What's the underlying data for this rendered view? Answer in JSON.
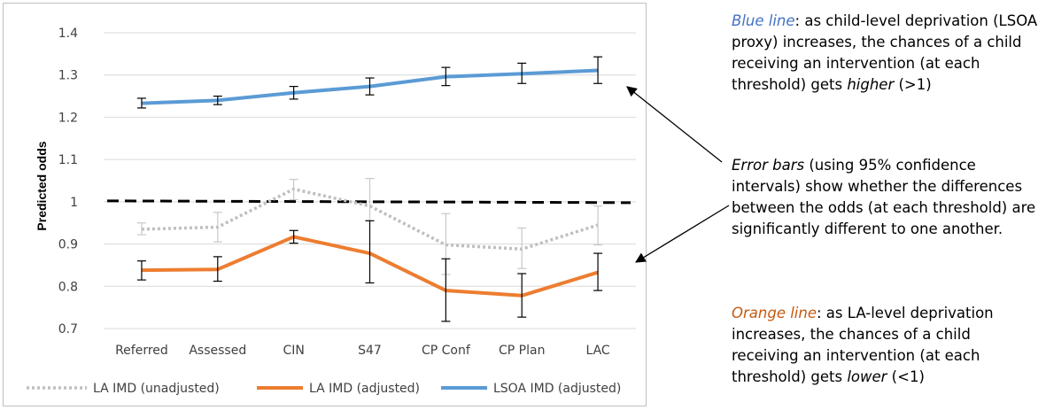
{
  "chart_data": {
    "type": "line",
    "ylabel": "Predicted odds",
    "xlabel": "",
    "ylim": [
      0.7,
      1.4
    ],
    "yticks": [
      "0.7",
      "0.8",
      "0.9",
      "1",
      "1.1",
      "1.2",
      "1.3",
      "1.4"
    ],
    "categories": [
      "Referred",
      "Assessed",
      "CIN",
      "S47",
      "CP Conf",
      "CP Plan",
      "LAC"
    ],
    "reference_line": {
      "y": 1.0,
      "style": "dashed",
      "color": "#000000"
    },
    "grid": "horizontal",
    "legend_position": "bottom",
    "series": [
      {
        "name": "LA IMD (unadjusted)",
        "color": "#bfbfbf",
        "style": "dotted",
        "values": [
          0.935,
          0.94,
          1.03,
          0.99,
          0.898,
          0.888,
          0.945
        ],
        "lower": [
          0.922,
          0.905,
          1.005,
          0.955,
          0.828,
          0.842,
          0.898
        ],
        "upper": [
          0.95,
          0.975,
          1.053,
          1.055,
          0.972,
          0.938,
          0.99
        ]
      },
      {
        "name": "LA IMD (adjusted)",
        "color": "#ed7d31",
        "style": "solid",
        "values": [
          0.838,
          0.84,
          0.917,
          0.878,
          0.79,
          0.778,
          0.833
        ],
        "lower": [
          0.815,
          0.812,
          0.902,
          0.808,
          0.717,
          0.727,
          0.79
        ],
        "upper": [
          0.86,
          0.87,
          0.932,
          0.955,
          0.865,
          0.83,
          0.878
        ]
      },
      {
        "name": "LSOA IMD (adjusted)",
        "color": "#5b9bd5",
        "style": "solid",
        "values": [
          1.233,
          1.24,
          1.258,
          1.273,
          1.296,
          1.303,
          1.311
        ],
        "lower": [
          1.222,
          1.23,
          1.243,
          1.253,
          1.275,
          1.28,
          1.28
        ],
        "upper": [
          1.245,
          1.25,
          1.273,
          1.293,
          1.318,
          1.328,
          1.343
        ]
      }
    ]
  },
  "annotations": {
    "blue": {
      "lead": "Blue line",
      "text1": ": as child-level deprivation (LSOA proxy) increases, the chances of a child receiving an intervention (at each threshold) gets ",
      "em": "higher",
      "text2": " (>1)"
    },
    "errors": {
      "lead": "Error bars",
      "text1": " (using 95% confidence intervals) show whether the differences between the odds (at each threshold) are significantly different to one another."
    },
    "orange": {
      "lead": "Orange line",
      "text1": ": as LA-level deprivation increases, the chances of a child receiving an intervention (at each threshold) gets ",
      "em": "lower",
      "text2": " (<1)"
    }
  },
  "colors": {
    "blue_text": "#4472c4",
    "orange_text": "#c55a11",
    "arrow": "#000000"
  }
}
